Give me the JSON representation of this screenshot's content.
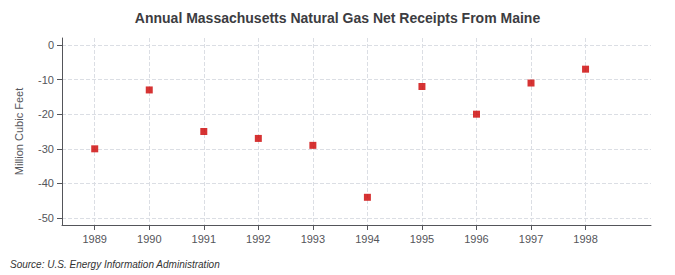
{
  "chart_data": {
    "type": "scatter",
    "title": "Annual Massachusetts Natural Gas Net Receipts From Maine",
    "ylabel": "Million Cubic Feet",
    "source": "Source: U.S. Energy Information Administration",
    "x": [
      1989,
      1990,
      1991,
      1992,
      1993,
      1994,
      1995,
      1996,
      1997,
      1998
    ],
    "values": [
      -30,
      -13,
      -25,
      -27,
      -29,
      -44,
      -12,
      -20,
      -11,
      -7
    ],
    "color": "#cc0000",
    "marker": "square",
    "xlim": [
      1988.4,
      1999.2
    ],
    "xticks": [
      1989,
      1990,
      1991,
      1992,
      1993,
      1994,
      1995,
      1996,
      1997,
      1998
    ],
    "ylim": [
      -52,
      2
    ],
    "yticks": [
      0,
      -10,
      -20,
      -30,
      -40,
      -50
    ],
    "grid": true
  }
}
